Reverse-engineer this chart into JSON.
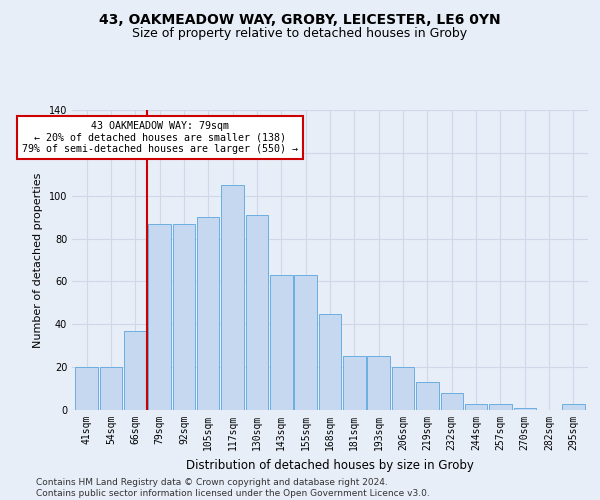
{
  "title": "43, OAKMEADOW WAY, GROBY, LEICESTER, LE6 0YN",
  "subtitle": "Size of property relative to detached houses in Groby",
  "xlabel": "Distribution of detached houses by size in Groby",
  "ylabel": "Number of detached properties",
  "bar_labels": [
    "41sqm",
    "54sqm",
    "66sqm",
    "79sqm",
    "92sqm",
    "105sqm",
    "117sqm",
    "130sqm",
    "143sqm",
    "155sqm",
    "168sqm",
    "181sqm",
    "193sqm",
    "206sqm",
    "219sqm",
    "232sqm",
    "244sqm",
    "257sqm",
    "270sqm",
    "282sqm",
    "295sqm"
  ],
  "bar_values": [
    20,
    20,
    37,
    87,
    87,
    90,
    105,
    91,
    63,
    63,
    45,
    25,
    25,
    20,
    13,
    8,
    3,
    3,
    1,
    0,
    3
  ],
  "bar_color": "#c5d8f0",
  "bar_edge_color": "#6aaee0",
  "background_color": "#e8eef8",
  "grid_color": "#d0d8e8",
  "vline_color": "#cc0000",
  "annotation_text": "43 OAKMEADOW WAY: 79sqm\n← 20% of detached houses are smaller (138)\n79% of semi-detached houses are larger (550) →",
  "annotation_box_color": "#ffffff",
  "annotation_box_edge": "#cc0000",
  "ylim": [
    0,
    140
  ],
  "yticks": [
    0,
    20,
    40,
    60,
    80,
    100,
    120,
    140
  ],
  "footer": "Contains HM Land Registry data © Crown copyright and database right 2024.\nContains public sector information licensed under the Open Government Licence v3.0.",
  "title_fontsize": 10,
  "subtitle_fontsize": 9,
  "xlabel_fontsize": 8.5,
  "ylabel_fontsize": 8,
  "tick_fontsize": 7,
  "footer_fontsize": 6.5
}
